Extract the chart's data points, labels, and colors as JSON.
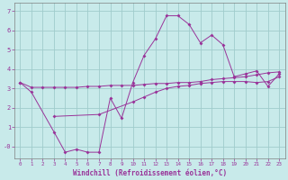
{
  "title": "",
  "xlabel": "Windchill (Refroidissement éolien,°C)",
  "background_color": "#c8eaea",
  "grid_color": "#a0cccc",
  "line_color": "#993399",
  "x": [
    0,
    1,
    2,
    3,
    4,
    5,
    6,
    7,
    8,
    9,
    10,
    11,
    12,
    13,
    14,
    15,
    16,
    17,
    18,
    19,
    20,
    21,
    22,
    23
  ],
  "y_main": [
    3.3,
    2.8,
    null,
    0.75,
    -0.3,
    -0.15,
    -0.3,
    -0.3,
    2.5,
    1.45,
    3.3,
    4.7,
    5.55,
    6.75,
    6.75,
    6.3,
    5.35,
    5.75,
    5.25,
    3.6,
    3.75,
    3.9,
    3.1,
    3.75
  ],
  "y_upper": [
    3.3,
    3.05,
    3.05,
    3.05,
    3.05,
    3.05,
    3.1,
    3.1,
    3.15,
    3.15,
    3.15,
    3.2,
    3.25,
    3.25,
    3.3,
    3.3,
    3.35,
    3.45,
    3.5,
    3.55,
    3.6,
    3.7,
    3.8,
    3.85
  ],
  "y_lower": [
    null,
    null,
    null,
    1.55,
    null,
    null,
    null,
    1.65,
    null,
    null,
    2.3,
    2.55,
    2.8,
    3.0,
    3.1,
    3.15,
    3.25,
    3.3,
    3.35,
    3.35,
    3.35,
    3.3,
    3.35,
    3.6
  ],
  "ylim": [
    -0.6,
    7.4
  ],
  "xlim": [
    -0.5,
    23.5
  ],
  "yticks": [
    0,
    1,
    2,
    3,
    4,
    5,
    6,
    7
  ],
  "ytick_labels": [
    "0",
    "1",
    "2",
    "3",
    "4",
    "5",
    "6",
    "7"
  ],
  "xticks": [
    0,
    1,
    2,
    3,
    4,
    5,
    6,
    7,
    8,
    9,
    10,
    11,
    12,
    13,
    14,
    15,
    16,
    17,
    18,
    19,
    20,
    21,
    22,
    23
  ],
  "ylabel_neg0": "-0",
  "marker": "D",
  "markersize": 2.0,
  "linewidth": 0.7
}
